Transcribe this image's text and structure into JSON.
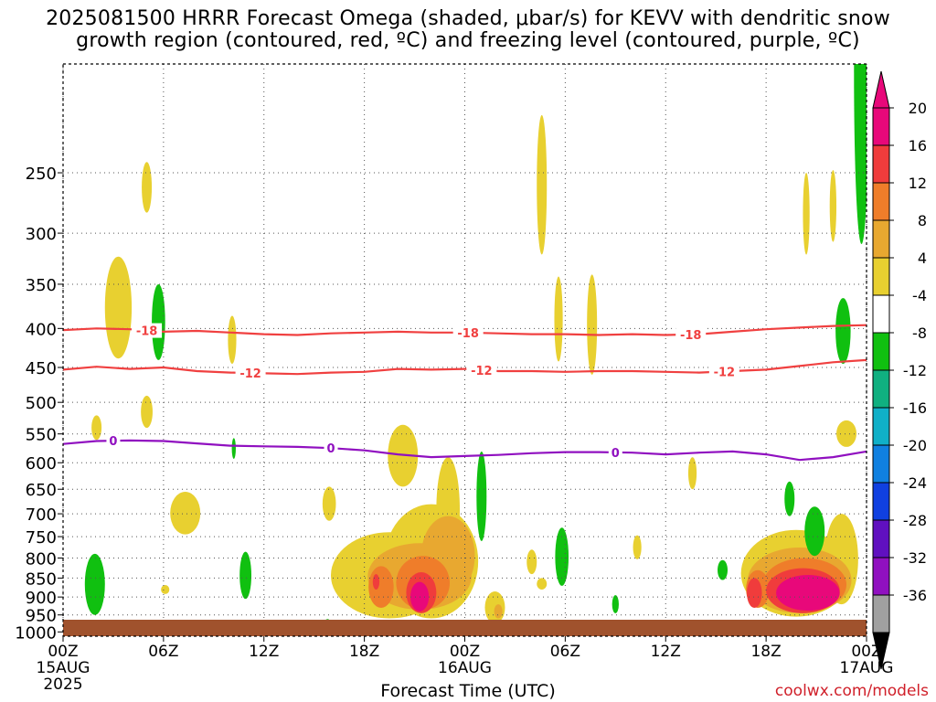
{
  "chart_data": {
    "type": "contour",
    "title_line1": "2025081500 HRRR Forecast Omega (shaded, μbar/s) for KEVV with dendritic snow",
    "title_line2": "growth region (contoured, red, ºC) and freezing level (contoured, purple, ºC)",
    "xlabel": "Forecast Time (UTC)",
    "credit": "coolwx.com/models",
    "x_ticks": [
      {
        "h": 0,
        "label": "00Z",
        "sub1": "15AUG",
        "sub2": "2025"
      },
      {
        "h": 6,
        "label": "06Z",
        "sub1": "",
        "sub2": ""
      },
      {
        "h": 12,
        "label": "12Z",
        "sub1": "",
        "sub2": ""
      },
      {
        "h": 18,
        "label": "18Z",
        "sub1": "",
        "sub2": ""
      },
      {
        "h": 24,
        "label": "00Z",
        "sub1": "16AUG",
        "sub2": ""
      },
      {
        "h": 30,
        "label": "06Z",
        "sub1": "",
        "sub2": ""
      },
      {
        "h": 36,
        "label": "12Z",
        "sub1": "",
        "sub2": ""
      },
      {
        "h": 42,
        "label": "18Z",
        "sub1": "",
        "sub2": ""
      },
      {
        "h": 48,
        "label": "00Z",
        "sub1": "17AUG",
        "sub2": ""
      }
    ],
    "x_range": [
      0,
      48
    ],
    "y_ticks": [
      250,
      300,
      350,
      400,
      450,
      500,
      550,
      600,
      650,
      700,
      750,
      800,
      850,
      900,
      950,
      1000
    ],
    "y_range_hpa": [
      180,
      1013
    ],
    "ground_color": "#a0522d",
    "colorbar": {
      "labels": [
        "20",
        "16",
        "12",
        "8",
        "4",
        "-4",
        "-8",
        "-12",
        "-16",
        "-20",
        "-24",
        "-28",
        "-32",
        "-36"
      ],
      "colors": [
        "#e8087a",
        "#f03c3c",
        "#ef7d2a",
        "#e8a830",
        "#e8d030",
        "#ffffff",
        "#10c010",
        "#10b080",
        "#10b0c8",
        "#1080e0",
        "#1040e0",
        "#6010c0",
        "#9010c0",
        "#a0a0a0"
      ]
    },
    "contour_lines": [
      {
        "label": "-18",
        "color": "#f04040",
        "points": [
          [
            0,
            402
          ],
          [
            2,
            400
          ],
          [
            4,
            401
          ],
          [
            6,
            404
          ],
          [
            8,
            403
          ],
          [
            10,
            405
          ],
          [
            12,
            407
          ],
          [
            14,
            408
          ],
          [
            16,
            406
          ],
          [
            18,
            405
          ],
          [
            20,
            404
          ],
          [
            22,
            405
          ],
          [
            24,
            405
          ],
          [
            26,
            406
          ],
          [
            28,
            407
          ],
          [
            30,
            407
          ],
          [
            32,
            408
          ],
          [
            34,
            407
          ],
          [
            36,
            408
          ],
          [
            38,
            407
          ],
          [
            40,
            404
          ],
          [
            42,
            401
          ],
          [
            44,
            399
          ],
          [
            46,
            397
          ],
          [
            48,
            396
          ]
        ],
        "label_h": [
          5,
          24.2,
          37.5
        ]
      },
      {
        "label": "-12",
        "color": "#f04040",
        "points": [
          [
            0,
            453
          ],
          [
            2,
            449
          ],
          [
            4,
            452
          ],
          [
            6,
            450
          ],
          [
            8,
            455
          ],
          [
            10,
            457
          ],
          [
            12,
            458
          ],
          [
            14,
            459
          ],
          [
            16,
            457
          ],
          [
            18,
            456
          ],
          [
            20,
            452
          ],
          [
            22,
            453
          ],
          [
            24,
            452
          ],
          [
            26,
            455
          ],
          [
            28,
            455
          ],
          [
            30,
            456
          ],
          [
            32,
            455
          ],
          [
            34,
            455
          ],
          [
            36,
            456
          ],
          [
            38,
            457
          ],
          [
            40,
            455
          ],
          [
            42,
            453
          ],
          [
            44,
            448
          ],
          [
            46,
            443
          ],
          [
            48,
            440
          ]
        ],
        "label_h": [
          11.2,
          25,
          39.5
        ]
      },
      {
        "label": "0",
        "color": "#9010c0",
        "points": [
          [
            0,
            567
          ],
          [
            2,
            562
          ],
          [
            4,
            561
          ],
          [
            6,
            562
          ],
          [
            8,
            566
          ],
          [
            10,
            570
          ],
          [
            12,
            571
          ],
          [
            14,
            572
          ],
          [
            16,
            574
          ],
          [
            18,
            578
          ],
          [
            20,
            585
          ],
          [
            22,
            590
          ],
          [
            24,
            588
          ],
          [
            26,
            586
          ],
          [
            28,
            583
          ],
          [
            30,
            581
          ],
          [
            32,
            581
          ],
          [
            34,
            582
          ],
          [
            36,
            585
          ],
          [
            38,
            582
          ],
          [
            40,
            580
          ],
          [
            42,
            585
          ],
          [
            44,
            595
          ],
          [
            46,
            590
          ],
          [
            48,
            580
          ]
        ],
        "label_h": [
          3,
          16,
          33
        ]
      }
    ],
    "shaded_regions": [
      {
        "level": 4,
        "color": "#e8d030",
        "center": [
          3.3,
          380
        ],
        "radius": [
          0.8,
          58
        ]
      },
      {
        "level": 4,
        "color": "#e8d030",
        "center": [
          5.0,
          262
        ],
        "radius": [
          0.3,
          20
        ]
      },
      {
        "level": 4,
        "color": "#e8d030",
        "center": [
          5.0,
          515
        ],
        "radius": [
          0.35,
          25
        ]
      },
      {
        "level": 4,
        "color": "#e8d030",
        "center": [
          2.0,
          540
        ],
        "radius": [
          0.3,
          20
        ]
      },
      {
        "level": 4,
        "color": "#e8d030",
        "center": [
          10.1,
          415
        ],
        "radius": [
          0.25,
          30
        ]
      },
      {
        "level": 4,
        "color": "#e8d030",
        "center": [
          7.3,
          700
        ],
        "radius": [
          0.9,
          45
        ]
      },
      {
        "level": 4,
        "color": "#e8d030",
        "center": [
          6.1,
          880
        ],
        "radius": [
          0.25,
          12
        ]
      },
      {
        "level": 4,
        "color": "#e8d030",
        "center": [
          15.9,
          680
        ],
        "radius": [
          0.4,
          35
        ]
      },
      {
        "level": 4,
        "color": "#e8d030",
        "center": [
          20.3,
          590
        ],
        "radius": [
          0.9,
          55
        ]
      },
      {
        "level": 4,
        "color": "#e8d030",
        "center": [
          23.0,
          700
        ],
        "radius": [
          0.7,
          110
        ]
      },
      {
        "level": 4,
        "color": "#e8d030",
        "center": [
          19.5,
          850
        ],
        "radius": [
          3.5,
          110
        ]
      },
      {
        "level": 4,
        "color": "#e8d030",
        "center": [
          22.0,
          820
        ],
        "radius": [
          2.8,
          140
        ]
      },
      {
        "level": 4,
        "color": "#e8d030",
        "center": [
          25.8,
          930
        ],
        "radius": [
          0.6,
          45
        ]
      },
      {
        "level": 4,
        "color": "#e8d030",
        "center": [
          28.0,
          810
        ],
        "radius": [
          0.3,
          30
        ]
      },
      {
        "level": 4,
        "color": "#e8d030",
        "center": [
          28.6,
          865
        ],
        "radius": [
          0.3,
          15
        ]
      },
      {
        "level": 4,
        "color": "#e8d030",
        "center": [
          28.6,
          265
        ],
        "radius": [
          0.3,
          55
        ]
      },
      {
        "level": 4,
        "color": "#e8d030",
        "center": [
          29.6,
          392
        ],
        "radius": [
          0.25,
          50
        ]
      },
      {
        "level": 4,
        "color": "#e8d030",
        "center": [
          31.6,
          400
        ],
        "radius": [
          0.3,
          60
        ]
      },
      {
        "level": 4,
        "color": "#e8d030",
        "center": [
          34.3,
          775
        ],
        "radius": [
          0.25,
          28
        ]
      },
      {
        "level": 4,
        "color": "#e8d030",
        "center": [
          37.6,
          620
        ],
        "radius": [
          0.25,
          30
        ]
      },
      {
        "level": 4,
        "color": "#e8d030",
        "center": [
          44.4,
          285
        ],
        "radius": [
          0.2,
          35
        ]
      },
      {
        "level": 4,
        "color": "#e8d030",
        "center": [
          46.0,
          278
        ],
        "radius": [
          0.2,
          30
        ]
      },
      {
        "level": 4,
        "color": "#e8d030",
        "center": [
          46.8,
          550
        ],
        "radius": [
          0.6,
          22
        ]
      },
      {
        "level": 4,
        "color": "#e8d030",
        "center": [
          43.8,
          845
        ],
        "radius": [
          3.3,
          110
        ]
      },
      {
        "level": 4,
        "color": "#e8d030",
        "center": [
          46.5,
          810
        ],
        "radius": [
          1.0,
          110
        ]
      },
      {
        "level": 8,
        "color": "#e8a830",
        "center": [
          21.3,
          850
        ],
        "radius": [
          3.1,
          85
        ]
      },
      {
        "level": 8,
        "color": "#e8a830",
        "center": [
          23.0,
          800
        ],
        "radius": [
          1.6,
          95
        ]
      },
      {
        "level": 8,
        "color": "#e8a830",
        "center": [
          26.0,
          940
        ],
        "radius": [
          0.25,
          20
        ]
      },
      {
        "level": 8,
        "color": "#e8a830",
        "center": [
          44.0,
          860
        ],
        "radius": [
          3.1,
          85
        ]
      },
      {
        "level": 12,
        "color": "#ef7d2a",
        "center": [
          19.0,
          875
        ],
        "radius": [
          0.75,
          55
        ]
      },
      {
        "level": 12,
        "color": "#ef7d2a",
        "center": [
          21.5,
          865
        ],
        "radius": [
          1.6,
          70
        ]
      },
      {
        "level": 12,
        "color": "#ef7d2a",
        "center": [
          41.5,
          880
        ],
        "radius": [
          0.7,
          50
        ]
      },
      {
        "level": 12,
        "color": "#ef7d2a",
        "center": [
          44.3,
          870
        ],
        "radius": [
          2.5,
          70
        ]
      },
      {
        "level": 16,
        "color": "#f03c3c",
        "center": [
          18.7,
          860
        ],
        "radius": [
          0.2,
          20
        ]
      },
      {
        "level": 16,
        "color": "#f03c3c",
        "center": [
          21.4,
          890
        ],
        "radius": [
          0.9,
          55
        ]
      },
      {
        "level": 16,
        "color": "#f03c3c",
        "center": [
          41.3,
          890
        ],
        "radius": [
          0.45,
          40
        ]
      },
      {
        "level": 16,
        "color": "#f03c3c",
        "center": [
          44.2,
          885
        ],
        "radius": [
          2.2,
          60
        ]
      },
      {
        "level": 20,
        "color": "#e8087a",
        "center": [
          21.3,
          900
        ],
        "radius": [
          0.55,
          40
        ]
      },
      {
        "level": 20,
        "color": "#e8087a",
        "center": [
          44.5,
          890
        ],
        "radius": [
          1.9,
          48
        ]
      },
      {
        "level": -4,
        "color": "#10c010",
        "center": [
          5.7,
          395
        ],
        "radius": [
          0.4,
          45
        ]
      },
      {
        "level": -4,
        "color": "#10c010",
        "center": [
          1.9,
          870
        ],
        "radius": [
          0.6,
          80
        ]
      },
      {
        "level": -4,
        "color": "#10c010",
        "center": [
          10.2,
          575
        ],
        "radius": [
          0.12,
          18
        ]
      },
      {
        "level": -4,
        "color": "#10c010",
        "center": [
          10.9,
          845
        ],
        "radius": [
          0.35,
          60
        ]
      },
      {
        "level": -4,
        "color": "#10c010",
        "center": [
          15.8,
          975
        ],
        "radius": [
          0.2,
          13
        ]
      },
      {
        "level": -4,
        "color": "#10c010",
        "center": [
          25.0,
          670
        ],
        "radius": [
          0.3,
          90
        ]
      },
      {
        "level": -4,
        "color": "#10c010",
        "center": [
          29.8,
          800
        ],
        "radius": [
          0.4,
          70
        ]
      },
      {
        "level": -4,
        "color": "#10c010",
        "center": [
          33.0,
          920
        ],
        "radius": [
          0.2,
          25
        ]
      },
      {
        "level": -4,
        "color": "#10c010",
        "center": [
          39.4,
          830
        ],
        "radius": [
          0.3,
          25
        ]
      },
      {
        "level": -4,
        "color": "#10c010",
        "center": [
          43.4,
          670
        ],
        "radius": [
          0.3,
          35
        ]
      },
      {
        "level": -4,
        "color": "#10c010",
        "center": [
          44.9,
          740
        ],
        "radius": [
          0.6,
          55
        ]
      },
      {
        "level": -4,
        "color": "#10c010",
        "center": [
          46.6,
          405
        ],
        "radius": [
          0.45,
          40
        ]
      },
      {
        "level": -4,
        "color": "#10c010",
        "center": [
          47.7,
          210
        ],
        "radius": [
          0.45,
          100
        ]
      }
    ]
  }
}
